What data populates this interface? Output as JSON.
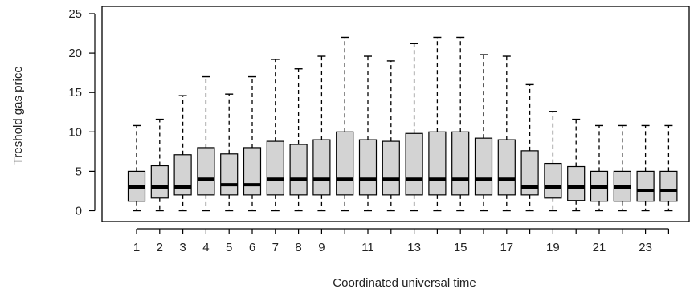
{
  "chart_data": {
    "type": "boxplot",
    "title": "",
    "xlabel": "Coordinated universal time",
    "ylabel": "Treshold gas price",
    "ylim": [
      0,
      25
    ],
    "yticks": [
      0,
      5,
      10,
      15,
      20,
      25
    ],
    "x": [
      1,
      2,
      3,
      4,
      5,
      6,
      7,
      8,
      9,
      10,
      11,
      12,
      13,
      14,
      15,
      16,
      17,
      18,
      19,
      20,
      21,
      22,
      23,
      24
    ],
    "x_tick_labels": [
      "1",
      "2",
      "3",
      "4",
      "5",
      "6",
      "7",
      "8",
      "9",
      "11",
      "13",
      "15",
      "17",
      "19",
      "21",
      "23"
    ],
    "x_tick_positions": [
      1,
      2,
      3,
      4,
      5,
      6,
      7,
      8,
      9,
      11,
      13,
      15,
      17,
      19,
      21,
      23
    ],
    "boxes": [
      {
        "x": 1,
        "min": 0,
        "q1": 1.2,
        "median": 3.0,
        "q3": 5.0,
        "max": 10.8
      },
      {
        "x": 2,
        "min": 0,
        "q1": 1.6,
        "median": 3.0,
        "q3": 5.7,
        "max": 11.6
      },
      {
        "x": 3,
        "min": 0,
        "q1": 2.0,
        "median": 3.0,
        "q3": 7.1,
        "max": 14.6
      },
      {
        "x": 4,
        "min": 0,
        "q1": 2.0,
        "median": 4.0,
        "q3": 8.0,
        "max": 17.0
      },
      {
        "x": 5,
        "min": 0,
        "q1": 2.0,
        "median": 3.3,
        "q3": 7.2,
        "max": 14.8
      },
      {
        "x": 6,
        "min": 0,
        "q1": 2.0,
        "median": 3.3,
        "q3": 8.0,
        "max": 17.0
      },
      {
        "x": 7,
        "min": 0,
        "q1": 2.0,
        "median": 4.0,
        "q3": 8.8,
        "max": 19.2
      },
      {
        "x": 8,
        "min": 0,
        "q1": 2.0,
        "median": 4.0,
        "q3": 8.4,
        "max": 18.0
      },
      {
        "x": 9,
        "min": 0,
        "q1": 2.0,
        "median": 4.0,
        "q3": 9.0,
        "max": 19.6
      },
      {
        "x": 10,
        "min": 0,
        "q1": 2.0,
        "median": 4.0,
        "q3": 10.0,
        "max": 22.0
      },
      {
        "x": 11,
        "min": 0,
        "q1": 2.0,
        "median": 4.0,
        "q3": 9.0,
        "max": 19.6
      },
      {
        "x": 12,
        "min": 0,
        "q1": 2.0,
        "median": 4.0,
        "q3": 8.8,
        "max": 19.0
      },
      {
        "x": 13,
        "min": 0,
        "q1": 2.0,
        "median": 4.0,
        "q3": 9.8,
        "max": 21.2
      },
      {
        "x": 14,
        "min": 0,
        "q1": 2.0,
        "median": 4.0,
        "q3": 10.0,
        "max": 22.0
      },
      {
        "x": 15,
        "min": 0,
        "q1": 2.0,
        "median": 4.0,
        "q3": 10.0,
        "max": 22.0
      },
      {
        "x": 16,
        "min": 0,
        "q1": 2.0,
        "median": 4.0,
        "q3": 9.2,
        "max": 19.8
      },
      {
        "x": 17,
        "min": 0,
        "q1": 2.0,
        "median": 4.0,
        "q3": 9.0,
        "max": 19.6
      },
      {
        "x": 18,
        "min": 0,
        "q1": 2.0,
        "median": 3.0,
        "q3": 7.6,
        "max": 16.0
      },
      {
        "x": 19,
        "min": 0,
        "q1": 1.6,
        "median": 3.0,
        "q3": 6.0,
        "max": 12.6
      },
      {
        "x": 20,
        "min": 0,
        "q1": 1.3,
        "median": 3.0,
        "q3": 5.6,
        "max": 11.6
      },
      {
        "x": 21,
        "min": 0,
        "q1": 1.2,
        "median": 3.0,
        "q3": 5.0,
        "max": 10.8
      },
      {
        "x": 22,
        "min": 0,
        "q1": 1.2,
        "median": 3.0,
        "q3": 5.0,
        "max": 10.8
      },
      {
        "x": 23,
        "min": 0,
        "q1": 1.2,
        "median": 2.6,
        "q3": 5.0,
        "max": 10.8
      },
      {
        "x": 24,
        "min": 0,
        "q1": 1.2,
        "median": 2.6,
        "q3": 5.0,
        "max": 10.8
      }
    ],
    "grid": false,
    "legend": "none",
    "colors": {
      "box_fill": "#d3d3d3",
      "stroke": "#000000",
      "text": "#222222"
    }
  }
}
